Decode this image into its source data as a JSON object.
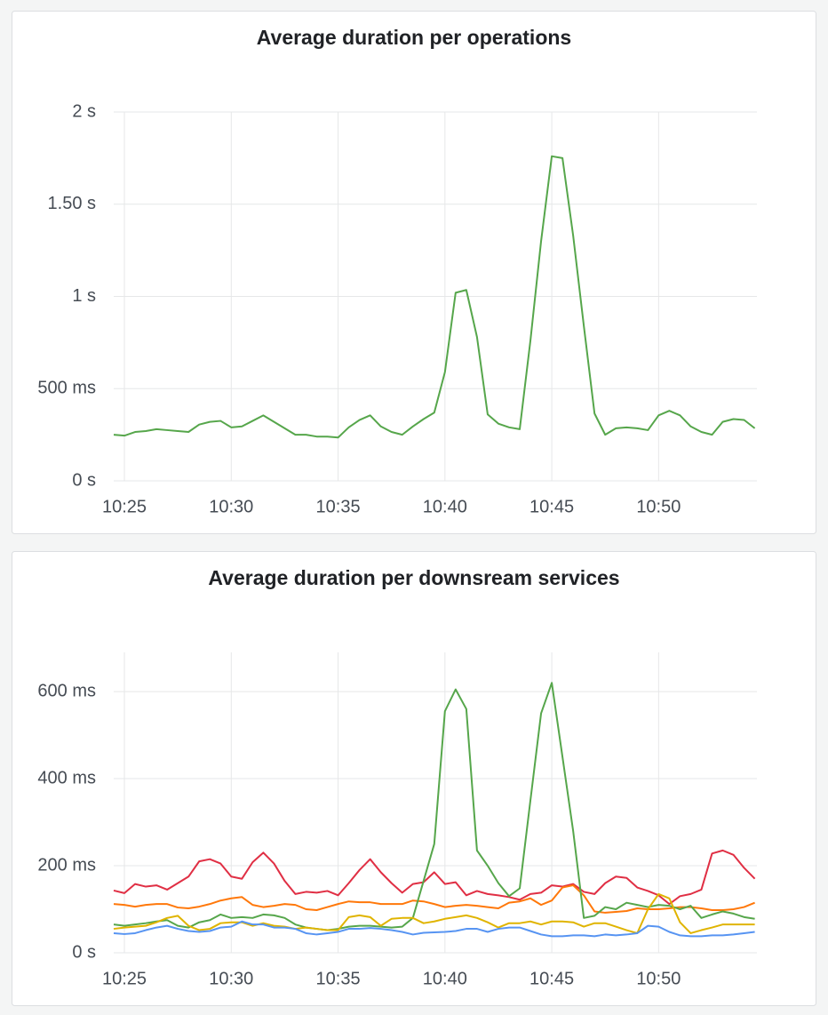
{
  "chart_data": [
    {
      "type": "line",
      "title": "Average duration per operations",
      "x": [
        24.5,
        25,
        25.5,
        26,
        26.5,
        27,
        27.5,
        28,
        28.5,
        29,
        29.5,
        30,
        30.5,
        31,
        31.5,
        32,
        32.5,
        33,
        33.5,
        34,
        34.5,
        35,
        35.5,
        36,
        36.5,
        37,
        37.5,
        38,
        38.5,
        39,
        39.5,
        40,
        40.5,
        41,
        41.5,
        42,
        42.5,
        43,
        43.5,
        44,
        44.5,
        45,
        45.5,
        46,
        46.5,
        47,
        47.5,
        48,
        48.5,
        49,
        49.5,
        50,
        50.5,
        51,
        51.5,
        52,
        52.5,
        53,
        53.5,
        54,
        54.5
      ],
      "series": [
        {
          "color": "#56a64b",
          "values": [
            250,
            245,
            265,
            270,
            280,
            275,
            270,
            265,
            305,
            320,
            325,
            290,
            295,
            325,
            355,
            320,
            285,
            250,
            250,
            240,
            240,
            235,
            290,
            330,
            355,
            295,
            265,
            250,
            295,
            335,
            370,
            590,
            1020,
            1035,
            780,
            360,
            310,
            290,
            280,
            760,
            1300,
            1760,
            1750,
            1330,
            840,
            365,
            250,
            285,
            290,
            285,
            275,
            355,
            380,
            355,
            295,
            265,
            250,
            320,
            335,
            330,
            285
          ]
        }
      ],
      "xlim": [
        24.5,
        54.6
      ],
      "xticks": [
        {
          "value": 25,
          "label": "10:25"
        },
        {
          "value": 30,
          "label": "10:30"
        },
        {
          "value": 35,
          "label": "10:35"
        },
        {
          "value": 40,
          "label": "10:40"
        },
        {
          "value": 45,
          "label": "10:45"
        },
        {
          "value": 50,
          "label": "10:50"
        }
      ],
      "ylim": [
        0,
        2000
      ],
      "yticks": [
        {
          "value": 0,
          "label": "0 s"
        },
        {
          "value": 500,
          "label": "500 ms"
        },
        {
          "value": 1000,
          "label": "1 s"
        },
        {
          "value": 1500,
          "label": "1.50 s"
        },
        {
          "value": 2000,
          "label": "2 s"
        }
      ],
      "grid": true
    },
    {
      "type": "line",
      "title": "Average duration per downsream services",
      "x": [
        24.5,
        25,
        25.5,
        26,
        26.5,
        27,
        27.5,
        28,
        28.5,
        29,
        29.5,
        30,
        30.5,
        31,
        31.5,
        32,
        32.5,
        33,
        33.5,
        34,
        34.5,
        35,
        35.5,
        36,
        36.5,
        37,
        37.5,
        38,
        38.5,
        39,
        39.5,
        40,
        40.5,
        41,
        41.5,
        42,
        42.5,
        43,
        43.5,
        44,
        44.5,
        45,
        45.5,
        46,
        46.5,
        47,
        47.5,
        48,
        48.5,
        49,
        49.5,
        50,
        50.5,
        51,
        51.5,
        52,
        52.5,
        53,
        53.5,
        54,
        54.5
      ],
      "series": [
        {
          "color": "#e02f44",
          "values": [
            143,
            137,
            158,
            152,
            155,
            145,
            160,
            175,
            210,
            215,
            205,
            175,
            170,
            208,
            230,
            205,
            165,
            135,
            140,
            138,
            142,
            132,
            160,
            190,
            215,
            185,
            160,
            138,
            158,
            162,
            185,
            158,
            162,
            132,
            142,
            135,
            132,
            128,
            122,
            135,
            138,
            155,
            152,
            158,
            140,
            135,
            160,
            175,
            172,
            150,
            142,
            132,
            112,
            130,
            135,
            145,
            228,
            235,
            225,
            195,
            170
          ]
        },
        {
          "color": "#ff780a",
          "values": [
            112,
            110,
            106,
            110,
            112,
            112,
            104,
            102,
            106,
            112,
            120,
            125,
            128,
            110,
            105,
            108,
            112,
            110,
            100,
            98,
            105,
            112,
            118,
            116,
            116,
            112,
            112,
            112,
            120,
            118,
            112,
            105,
            108,
            110,
            108,
            105,
            102,
            115,
            118,
            125,
            110,
            120,
            150,
            155,
            132,
            95,
            92,
            94,
            96,
            102,
            100,
            100,
            102,
            105,
            105,
            102,
            98,
            98,
            100,
            105,
            115
          ]
        },
        {
          "color": "#56a64b",
          "values": [
            65,
            62,
            65,
            68,
            72,
            75,
            62,
            58,
            70,
            75,
            88,
            80,
            82,
            80,
            88,
            86,
            80,
            65,
            58,
            55,
            52,
            55,
            60,
            62,
            62,
            60,
            58,
            60,
            80,
            165,
            250,
            555,
            605,
            560,
            235,
            200,
            160,
            130,
            148,
            350,
            550,
            620,
            450,
            280,
            80,
            85,
            105,
            100,
            115,
            110,
            105,
            110,
            108,
            100,
            108,
            80,
            88,
            95,
            90,
            82,
            78
          ]
        },
        {
          "color": "#e0b400",
          "values": [
            55,
            58,
            60,
            62,
            70,
            80,
            85,
            62,
            52,
            55,
            68,
            70,
            70,
            62,
            68,
            62,
            60,
            55,
            58,
            55,
            52,
            52,
            82,
            86,
            82,
            62,
            78,
            80,
            80,
            68,
            72,
            78,
            82,
            86,
            80,
            70,
            58,
            68,
            68,
            72,
            65,
            72,
            72,
            70,
            60,
            68,
            68,
            60,
            52,
            45,
            100,
            135,
            125,
            70,
            45,
            52,
            58,
            65,
            65,
            65,
            65
          ]
        },
        {
          "color": "#5794f2",
          "values": [
            45,
            43,
            45,
            52,
            58,
            62,
            55,
            50,
            48,
            50,
            58,
            60,
            72,
            65,
            65,
            58,
            58,
            55,
            45,
            42,
            45,
            48,
            55,
            55,
            57,
            55,
            52,
            48,
            42,
            46,
            47,
            48,
            50,
            55,
            55,
            48,
            55,
            58,
            58,
            50,
            42,
            38,
            38,
            40,
            40,
            38,
            42,
            40,
            42,
            45,
            62,
            60,
            48,
            40,
            38,
            38,
            40,
            40,
            42,
            45,
            48
          ]
        }
      ],
      "xlim": [
        24.5,
        54.6
      ],
      "xticks": [
        {
          "value": 25,
          "label": "10:25"
        },
        {
          "value": 30,
          "label": "10:30"
        },
        {
          "value": 35,
          "label": "10:35"
        },
        {
          "value": 40,
          "label": "10:40"
        },
        {
          "value": 45,
          "label": "10:45"
        },
        {
          "value": 50,
          "label": "10:50"
        }
      ],
      "ylim": [
        0,
        690
      ],
      "yticks": [
        {
          "value": 0,
          "label": "0 s"
        },
        {
          "value": 200,
          "label": "200 ms"
        },
        {
          "value": 400,
          "label": "400 ms"
        },
        {
          "value": 600,
          "label": "600 ms"
        }
      ],
      "grid": true
    }
  ]
}
